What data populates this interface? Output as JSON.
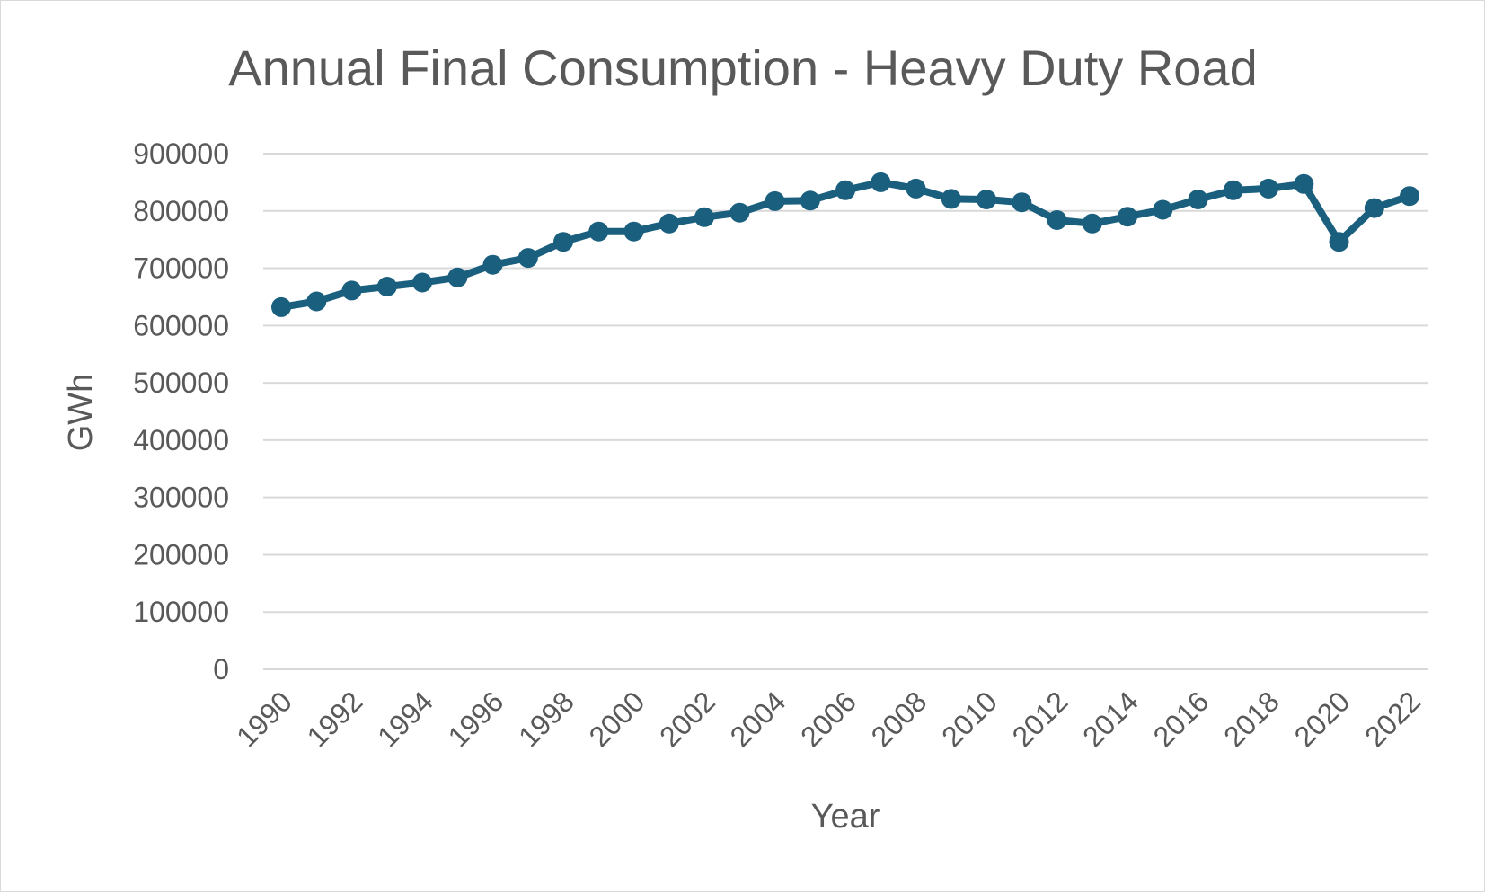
{
  "chart_data": {
    "type": "line",
    "title": "Annual Final Consumption - Heavy Duty Road",
    "xlabel": "Year",
    "ylabel": "GWh",
    "ylim": [
      0,
      900000
    ],
    "yticks": [
      "0",
      "100000",
      "200000",
      "300000",
      "400000",
      "500000",
      "600000",
      "700000",
      "800000",
      "900000"
    ],
    "xtick_labels": [
      "1990",
      "1992",
      "1994",
      "1996",
      "1998",
      "2000",
      "2002",
      "2004",
      "2006",
      "2008",
      "2010",
      "2012",
      "2014",
      "2016",
      "2018",
      "2020",
      "2022"
    ],
    "grid": true,
    "legend": "none",
    "x": [
      1990,
      1991,
      1992,
      1993,
      1994,
      1995,
      1996,
      1997,
      1998,
      1999,
      2000,
      2001,
      2002,
      2003,
      2004,
      2005,
      2006,
      2007,
      2008,
      2009,
      2010,
      2011,
      2012,
      2013,
      2014,
      2015,
      2016,
      2017,
      2018,
      2019,
      2020,
      2021,
      2022
    ],
    "series": [
      {
        "color": "#1b5f7e",
        "values": [
          632000,
          642000,
          661000,
          668000,
          675000,
          684000,
          706000,
          718000,
          746000,
          764000,
          764000,
          778000,
          789000,
          797000,
          817000,
          818000,
          836000,
          850000,
          839000,
          821000,
          820000,
          815000,
          784000,
          778000,
          790000,
          802000,
          820000,
          836000,
          839000,
          847000,
          746000,
          805000,
          826000
        ]
      }
    ]
  }
}
